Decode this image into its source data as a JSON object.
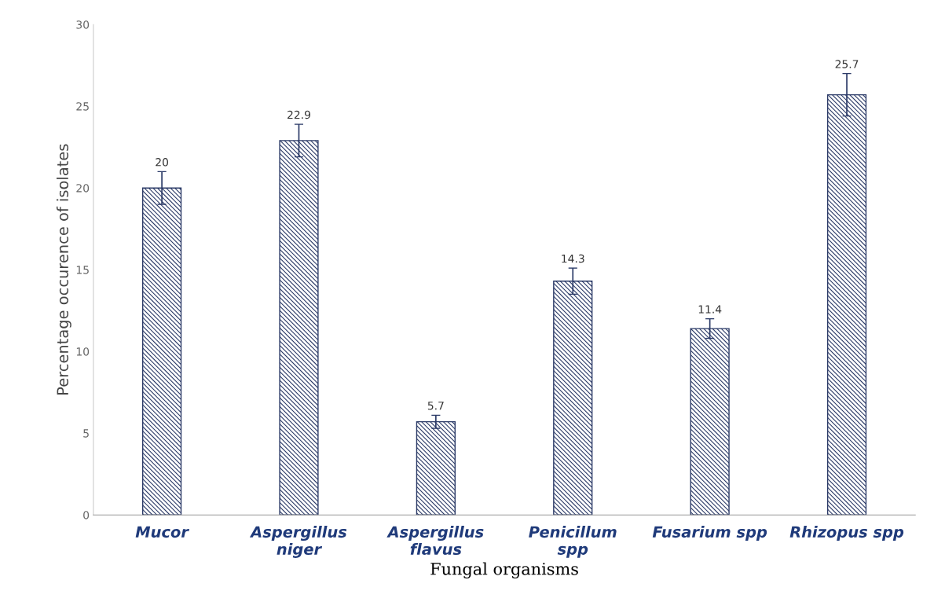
{
  "chart_data": {
    "type": "bar",
    "categories": [
      "Mucor",
      "Aspergillus niger",
      "Aspergillus flavus",
      "Penicillum spp",
      "Fusarium spp",
      "Rhizopus spp"
    ],
    "values": [
      20,
      22.9,
      5.7,
      14.3,
      11.4,
      25.7
    ],
    "errors": [
      1,
      1,
      0.4,
      0.8,
      0.6,
      1.3
    ],
    "color": "#2b3a67",
    "data_labels": true,
    "xlabel": "Fungal organisms",
    "ylabel": "Percentage occurence of isolates",
    "ylim": [
      0,
      30
    ],
    "yticks": [
      0,
      5,
      10,
      15,
      20,
      25,
      30
    ]
  }
}
